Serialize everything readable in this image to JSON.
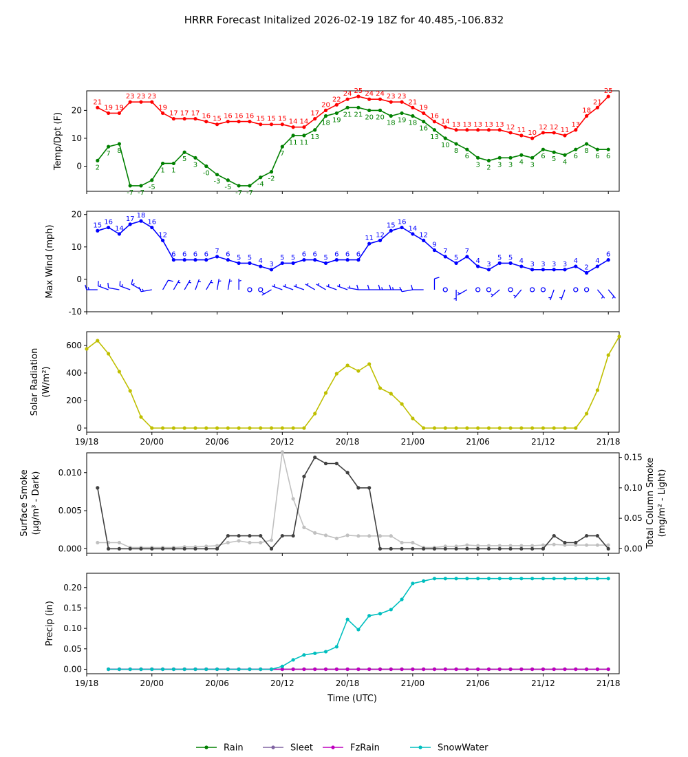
{
  "chart_data": {
    "type": "line",
    "title": "HRRR Forecast Initalized 2026-02-19 18Z for 40.485,-106.832",
    "xlabel": "Time (UTC)",
    "x_start_hour": 0,
    "x_end_hour": 48,
    "x_tick_hours": [
      0,
      6,
      12,
      18,
      24,
      30,
      36,
      42,
      48
    ],
    "x_tick_labels": [
      "19/18",
      "20/00",
      "20/06",
      "20/12",
      "20/18",
      "21/00",
      "21/06",
      "21/12",
      "21/18"
    ],
    "xlim": [
      0,
      49
    ],
    "colors": {
      "temp": "#ff0000",
      "dewpoint": "#008000",
      "wind": "#0000ff",
      "solar": "#bfbf00",
      "smoke_surface": "#404040",
      "smoke_column": "#c0c0c0",
      "rain": "#008000",
      "sleet": "#8064a2",
      "fzrain": "#bf00bf",
      "snowwater": "#00bfbf"
    },
    "panels": {
      "temp": {
        "ylabel": "Temp/Dpt (F)",
        "ylim": [
          -9,
          27
        ],
        "yticks": [
          0,
          10,
          20
        ],
        "temperature": [
          21,
          19,
          19,
          23,
          23,
          23,
          19,
          17,
          17,
          17,
          16,
          15,
          16,
          16,
          16,
          15,
          15,
          15,
          14,
          14,
          17,
          20,
          22,
          24,
          25,
          24,
          24,
          23,
          23,
          21,
          19,
          16,
          14,
          13,
          13,
          13,
          13,
          13,
          12,
          11,
          10,
          12,
          12,
          11,
          13,
          18,
          21,
          25
        ],
        "dewpoint": [
          2,
          7,
          8,
          -7,
          -7,
          -5,
          1,
          1,
          5,
          3,
          0,
          -3,
          -5,
          -7,
          -7,
          -4,
          -2,
          7,
          11,
          11,
          13,
          18,
          19,
          21,
          21,
          20,
          20,
          18,
          19,
          18,
          16,
          13,
          10,
          8,
          6,
          3,
          2,
          3,
          3,
          4,
          3,
          6,
          5,
          4,
          6,
          8,
          6,
          6
        ],
        "temperature_labels": [
          "21",
          "19",
          "19",
          "23",
          "23",
          "23",
          "19",
          "17",
          "17",
          "17",
          "16",
          "15",
          "16",
          "16",
          "16",
          "15",
          "15",
          "15",
          "14",
          "14",
          "17",
          "20",
          "22",
          "24",
          "25",
          "24",
          "24",
          "23",
          "23",
          "21",
          "19",
          "16",
          "14",
          "13",
          "13",
          "13",
          "13",
          "13",
          "12",
          "11",
          "10",
          "12",
          "12",
          "11",
          "13",
          "18",
          "21",
          "25"
        ],
        "dewpoint_labels": [
          "2",
          "7",
          "8",
          "-7",
          "-7",
          "-5",
          "1",
          "1",
          "5",
          "3",
          "-0",
          "-3",
          "-5",
          "-7",
          "-7",
          "-4",
          "-2",
          "7",
          "11",
          "11",
          "13",
          "18",
          "19",
          "21",
          "21",
          "20",
          "20",
          "18",
          "19",
          "18",
          "16",
          "13",
          "10",
          "8",
          "6",
          "3",
          "2",
          "3",
          "3",
          "4",
          "3",
          "6",
          "5",
          "4",
          "6",
          "8",
          "6",
          "6"
        ]
      },
      "wind": {
        "ylabel": "Max Wind (mph)",
        "ylim": [
          -10,
          21
        ],
        "yticks": [
          -10,
          0,
          10,
          20
        ],
        "speed": [
          15,
          16,
          14,
          17,
          18,
          16,
          12,
          6,
          6,
          6,
          6,
          7,
          6,
          5,
          5,
          4,
          3,
          5,
          5,
          6,
          6,
          5,
          6,
          6,
          6,
          11,
          12,
          15,
          16,
          14,
          12,
          9,
          7,
          5,
          7,
          4,
          3,
          5,
          5,
          4,
          3,
          3,
          3,
          3,
          4,
          2,
          4,
          6
        ],
        "speed_labels": [
          "15",
          "16",
          "14",
          "17",
          "18",
          "16",
          "12",
          "6",
          "6",
          "6",
          "6",
          "7",
          "6",
          "5",
          "5",
          "4",
          "3",
          "5",
          "5",
          "6",
          "6",
          "5",
          "6",
          "6",
          "6",
          "11",
          "12",
          "15",
          "16",
          "14",
          "12",
          "9",
          "7",
          "5",
          "7",
          "4",
          "3",
          "5",
          "5",
          "4",
          "3",
          "3",
          "3",
          "3",
          "4",
          "2",
          "4",
          "6"
        ],
        "direction_deg": [
          270,
          290,
          280,
          290,
          300,
          260,
          30,
          30,
          30,
          20,
          30,
          10,
          10,
          0,
          300,
          240,
          240,
          290,
          290,
          290,
          300,
          300,
          290,
          290,
          280,
          270,
          270,
          270,
          270,
          260,
          270,
          0,
          240,
          180,
          240,
          0,
          0,
          230,
          230,
          220,
          0,
          0,
          200,
          200,
          210,
          0,
          140,
          140
        ],
        "barb_calm": [
          false,
          false,
          false,
          false,
          false,
          false,
          false,
          false,
          false,
          false,
          false,
          false,
          false,
          false,
          true,
          true,
          false,
          false,
          false,
          false,
          false,
          false,
          false,
          false,
          false,
          false,
          false,
          false,
          false,
          false,
          false,
          false,
          true,
          false,
          false,
          true,
          true,
          false,
          true,
          false,
          true,
          true,
          false,
          false,
          true,
          true,
          false,
          false
        ]
      },
      "solar": {
        "ylabel": "Solar Radiation",
        "ylabel_unit": "(W/m²)",
        "ylim": [
          -30,
          700
        ],
        "yticks": [
          0,
          200,
          400,
          600
        ],
        "values": [
          575,
          635,
          540,
          410,
          270,
          80,
          0,
          0,
          0,
          0,
          0,
          0,
          0,
          0,
          0,
          0,
          0,
          0,
          0,
          0,
          0,
          105,
          255,
          395,
          455,
          415,
          465,
          290,
          250,
          175,
          70,
          0,
          0,
          0,
          0,
          0,
          0,
          0,
          0,
          0,
          0,
          0,
          0,
          0,
          0,
          0,
          105,
          275,
          530,
          665
        ]
      },
      "smoke": {
        "ylabel_left": "Surface Smoke",
        "ylabel_left_unit": "(µg/m³ - Dark)",
        "ylabel_right": "Total Column Smoke",
        "ylabel_right_unit": "(mg/m² - Light)",
        "ylim_left": [
          -0.0006,
          0.0126
        ],
        "ylim_right": [
          -0.0075,
          0.1575
        ],
        "yticks_left": [
          0.0,
          0.005,
          0.01
        ],
        "yticks_left_labels": [
          "0.000",
          "0.005",
          "0.010"
        ],
        "yticks_right": [
          0.0,
          0.05,
          0.1,
          0.15
        ],
        "yticks_right_labels": [
          "0.00",
          "0.05",
          "0.10",
          "0.15"
        ],
        "surface": [
          0.008,
          0,
          0,
          0,
          0,
          0,
          0,
          0,
          0,
          0,
          0,
          0,
          0.0017,
          0.0017,
          0.0017,
          0.0017,
          0,
          0.0017,
          0.0017,
          0.0095,
          0.012,
          0.0112,
          0.0112,
          0.01,
          0.008,
          0.008,
          0,
          0,
          0,
          0,
          0,
          0,
          0,
          0,
          0,
          0,
          0,
          0,
          0,
          0,
          0,
          0,
          0.0017,
          0.0008,
          0.0008,
          0.0017,
          0.0017,
          0
        ],
        "column": [
          0.01,
          0.01,
          0.01,
          0.002,
          0.002,
          0.002,
          0.002,
          0.002,
          0.003,
          0.003,
          0.004,
          0.005,
          0.01,
          0.013,
          0.01,
          0.01,
          0.014,
          0.159,
          0.082,
          0.035,
          0.026,
          0.022,
          0.017,
          0.022,
          0.021,
          0.021,
          0.021,
          0.021,
          0.01,
          0.01,
          0.002,
          0.002,
          0.004,
          0.004,
          0.006,
          0.005,
          0.005,
          0.005,
          0.005,
          0.005,
          0.005,
          0.006,
          0.007,
          0.006,
          0.006,
          0.006,
          0.006,
          0.006
        ]
      },
      "precip": {
        "ylabel": "Precip (in)",
        "ylim": [
          -0.011,
          0.235
        ],
        "yticks": [
          0.0,
          0.05,
          0.1,
          0.15,
          0.2
        ],
        "yticks_labels": [
          "0.00",
          "0.05",
          "0.10",
          "0.15",
          "0.20"
        ],
        "rain": [
          0,
          0,
          0,
          0,
          0,
          0,
          0,
          0,
          0,
          0,
          0,
          0,
          0,
          0,
          0,
          0,
          0,
          0,
          0,
          0,
          0,
          0,
          0,
          0,
          0,
          0,
          0,
          0,
          0,
          0,
          0,
          0,
          0,
          0,
          0,
          0,
          0,
          0,
          0,
          0,
          0,
          0,
          0,
          0,
          0,
          0,
          0
        ],
        "sleet": [
          0,
          0,
          0,
          0,
          0,
          0,
          0,
          0,
          0,
          0,
          0,
          0,
          0,
          0,
          0,
          0,
          0,
          0,
          0,
          0,
          0,
          0,
          0,
          0,
          0,
          0,
          0,
          0,
          0,
          0,
          0,
          0,
          0,
          0,
          0,
          0,
          0,
          0,
          0,
          0,
          0,
          0,
          0,
          0,
          0,
          0,
          0
        ],
        "fzrain": [
          0,
          0,
          0,
          0,
          0,
          0,
          0,
          0,
          0,
          0,
          0,
          0,
          0,
          0,
          0,
          0,
          0,
          0,
          0,
          0,
          0,
          0,
          0,
          0,
          0,
          0,
          0,
          0,
          0,
          0,
          0,
          0,
          0,
          0,
          0,
          0,
          0,
          0,
          0,
          0,
          0,
          0,
          0,
          0,
          0,
          0,
          0
        ],
        "snowwater": [
          0,
          0,
          0,
          0,
          0,
          0,
          0,
          0,
          0,
          0,
          0,
          0,
          0,
          0,
          0,
          0,
          0.007,
          0.023,
          0.035,
          0.039,
          0.043,
          0.055,
          0.122,
          0.097,
          0.131,
          0.136,
          0.146,
          0.171,
          0.21,
          0.216,
          0.222,
          0.222,
          0.222,
          0.222,
          0.222,
          0.222,
          0.222,
          0.222,
          0.222,
          0.222,
          0.222,
          0.222,
          0.222,
          0.222,
          0.222,
          0.222,
          0.222
        ]
      }
    },
    "legend": [
      "Rain",
      "Sleet",
      "FzRain",
      "SnowWater"
    ],
    "legend_position": "bottom-center"
  }
}
